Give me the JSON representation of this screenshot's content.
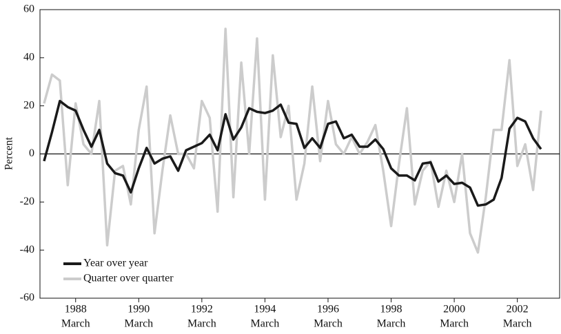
{
  "chart_data": {
    "type": "line",
    "y_label": "Percent",
    "x": [
      1987,
      1987.25,
      1987.5,
      1987.75,
      1988,
      1988.25,
      1988.5,
      1988.75,
      1989,
      1989.25,
      1989.5,
      1989.75,
      1990,
      1990.25,
      1990.5,
      1990.75,
      1991,
      1991.25,
      1991.5,
      1991.75,
      1992,
      1992.25,
      1992.5,
      1992.75,
      1993,
      1993.25,
      1993.5,
      1993.75,
      1994,
      1994.25,
      1994.5,
      1994.75,
      1995,
      1995.25,
      1995.5,
      1995.75,
      1996,
      1996.25,
      1996.5,
      1996.75,
      1997,
      1997.25,
      1997.5,
      1997.75,
      1998,
      1998.25,
      1998.5,
      1998.75,
      1999,
      1999.25,
      1999.5,
      1999.75,
      2000,
      2000.25,
      2000.5,
      2000.75,
      2001,
      2001.25,
      2001.5,
      2001.75,
      2002,
      2002.25,
      2002.5,
      2002.75
    ],
    "series": [
      {
        "name": "Quarter over quarter",
        "color": "#cccccc",
        "values": [
          21,
          33,
          30.5,
          -13,
          21,
          4,
          0,
          22,
          -38,
          -7,
          -5,
          -21,
          10,
          28,
          -33,
          -7,
          16,
          0,
          0,
          -6,
          22,
          15,
          -24,
          52,
          -18,
          38,
          0,
          48,
          -19,
          41,
          7,
          20,
          -19,
          -4,
          28,
          -3,
          22,
          4,
          0,
          7,
          0,
          5,
          12,
          -7,
          -30,
          -4,
          19,
          -21,
          -7,
          -3,
          -22,
          -7,
          -20,
          0,
          -33,
          -41,
          -18,
          10,
          10,
          39,
          -5,
          4,
          -15,
          18
        ]
      },
      {
        "name": "Year over year",
        "color": "#1a1a1a",
        "values": [
          -3,
          9,
          22,
          19.5,
          18,
          10,
          3,
          10,
          -4,
          -8,
          -9,
          -16,
          -6,
          2.5,
          -4,
          -2,
          -1,
          -7,
          1.5,
          3,
          4.5,
          8,
          1.5,
          16.5,
          6,
          11,
          19,
          17.5,
          17,
          18,
          20.5,
          13,
          12.5,
          2.5,
          6.5,
          2.5,
          12.5,
          13.5,
          6.5,
          8,
          3,
          3,
          6,
          2,
          -6,
          -9,
          -9,
          -11,
          -4,
          -3.5,
          -11.5,
          -9,
          -12.5,
          -12,
          -14,
          -21.5,
          -21,
          -19,
          -10,
          10.5,
          15,
          13.5,
          6.5,
          2
        ]
      }
    ],
    "legend_order": [
      1,
      0
    ],
    "xlim": [
      1986.87,
      2003.34
    ],
    "xticks": [
      1988,
      1990,
      1992,
      1994,
      1996,
      1998,
      2000,
      2002
    ],
    "x_tick_sublabel": "March",
    "ylim": [
      -60,
      60
    ],
    "yticks": [
      -60,
      -40,
      -20,
      0,
      20,
      40,
      60
    ],
    "zero_line": true
  }
}
